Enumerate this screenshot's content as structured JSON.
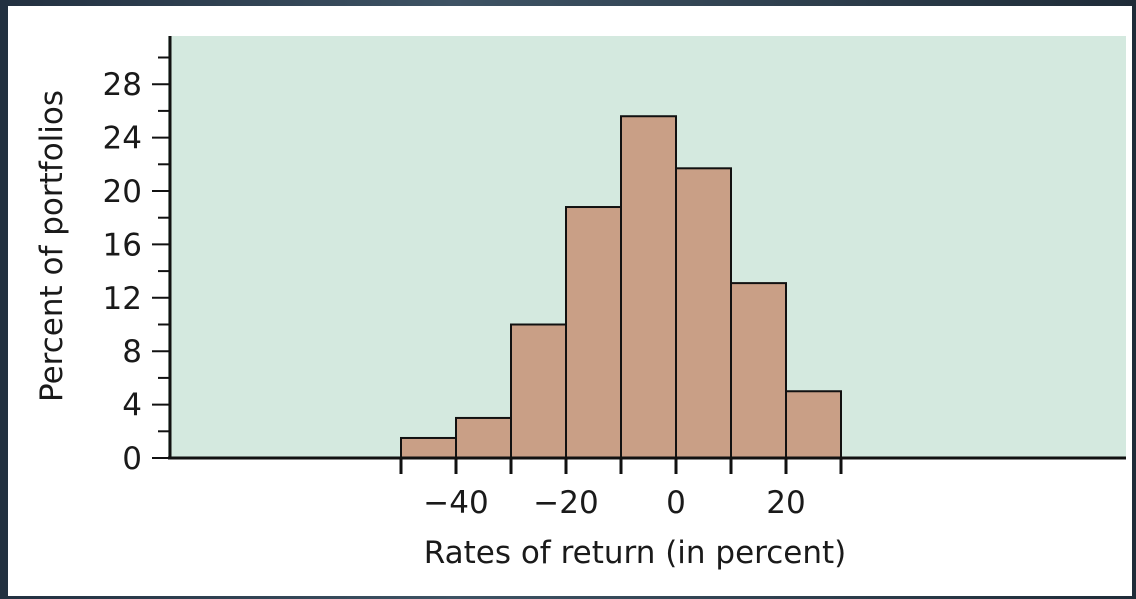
{
  "chart_data": {
    "type": "histogram",
    "bins": [
      {
        "x0": -50,
        "x1": -40,
        "value": 1.5
      },
      {
        "x0": -40,
        "x1": -30,
        "value": 3
      },
      {
        "x0": -30,
        "x1": -20,
        "value": 10
      },
      {
        "x0": -20,
        "x1": -10,
        "value": 18.8
      },
      {
        "x0": -10,
        "x1": 0,
        "value": 25.6
      },
      {
        "x0": 0,
        "x1": 10,
        "value": 21.7
      },
      {
        "x0": 10,
        "x1": 20,
        "value": 13.1
      },
      {
        "x0": 20,
        "x1": 30,
        "value": 5
      }
    ],
    "xlabel": "Rates of return (in percent)",
    "ylabel": "Percent of portfolios",
    "x_ticks": [
      "−40",
      "−20",
      "0",
      "20"
    ],
    "x_tick_values": [
      -40,
      -20,
      0,
      20
    ],
    "y_ticks": [
      "0",
      "4",
      "8",
      "12",
      "16",
      "20",
      "24",
      "28"
    ],
    "y_tick_values": [
      0,
      4,
      8,
      12,
      16,
      20,
      24,
      28
    ],
    "ylim": [
      0,
      31
    ],
    "xlim": [
      -92,
      82
    ],
    "grid": false,
    "colors": {
      "plot_background": "#d4e9df",
      "bar_fill": "#c99f86",
      "bar_stroke": "#111111",
      "axis": "#111111"
    }
  }
}
